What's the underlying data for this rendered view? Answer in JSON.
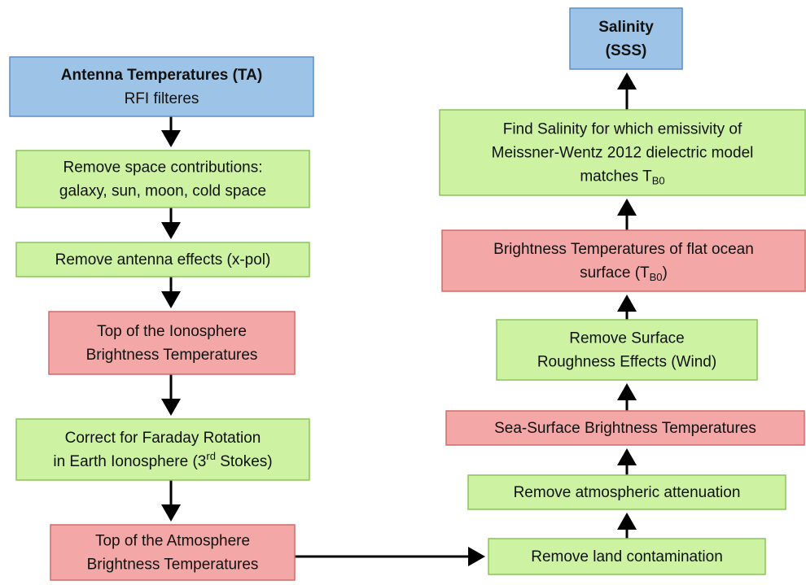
{
  "nodes": [
    {
      "lines": [
        "Antenna Temperatures (TA)",
        "RFI filteres"
      ],
      "bold_lines": 1
    },
    {
      "lines": [
        "Remove space contributions:",
        "galaxy, sun, moon, cold space"
      ]
    },
    {
      "lines": [
        "Remove antenna effects (x-pol)"
      ]
    },
    {
      "lines": [
        "Top of the Ionosphere",
        "Brightness Temperatures"
      ]
    },
    {
      "lines": [
        "Correct for Faraday Rotation",
        "in Earth Ionosphere (3"
      ],
      "superscript": "rd",
      "suffix": " Stokes)"
    },
    {
      "lines": [
        "Top of the Atmosphere",
        "Brightness Temperatures"
      ]
    },
    {
      "lines": [
        "Salinity",
        "(SSS)"
      ],
      "bold_lines": 2
    },
    {
      "lines": [
        "Find Salinity for which emissivity of",
        "Meissner-Wentz 2012 dielectric model",
        "matches T"
      ],
      "subscript": "B0"
    },
    {
      "lines": [
        "Brightness Temperatures of flat ocean",
        "surface (T"
      ],
      "subscript": "B0",
      "suffix": ")"
    },
    {
      "lines": [
        "Remove Surface",
        "Roughness Effects (Wind)"
      ]
    },
    {
      "lines": [
        "Sea-Surface Brightness Temperatures"
      ]
    },
    {
      "lines": [
        "Remove atmospheric attenuation"
      ]
    },
    {
      "lines": [
        "Remove land contamination"
      ]
    }
  ]
}
